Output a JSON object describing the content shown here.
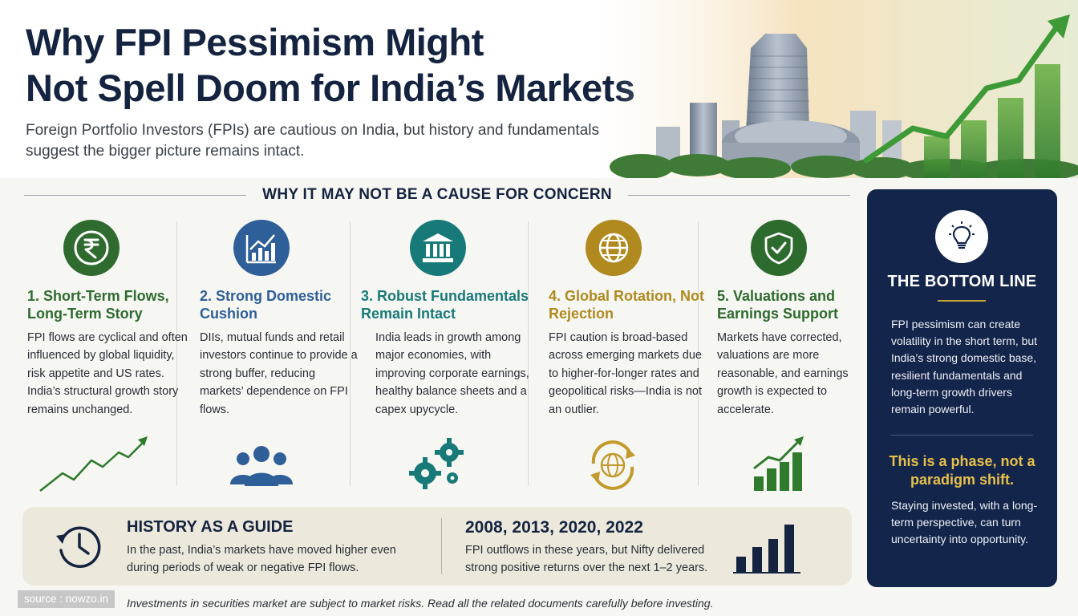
{
  "header": {
    "title_line1": "Why FPI Pessimism Might",
    "title_line2": "Not Spell Doom for India’s Markets",
    "subtitle": "Foreign Portfolio Investors (FPIs) are cautious on India, but history and fundamentals suggest the bigger picture remains intact."
  },
  "section_heading": "WHY IT MAY NOT BE A CAUSE FOR CONCERN",
  "reasons": [
    {
      "title": "1. Short-Term Flows, Long-Term Story",
      "body": "FPI flows are cyclical and often influenced by global liquidity, risk appetite and US rates. India’s structural growth story remains unchanged.",
      "color": "#2f6b2f",
      "icon": "rupee-icon",
      "art": "trend-line-icon"
    },
    {
      "title": "2. Strong Domestic Cushion",
      "body": "DIIs, mutual funds and retail investors continue to provide a strong buffer, reducing markets’ dependence on FPI flows.",
      "color": "#2f5f98",
      "icon": "growth-chart-icon",
      "art": "people-icon"
    },
    {
      "title": "3. Robust Fundamentals Remain Intact",
      "body": "India leads in growth among major economies, with improving corporate earnings, healthy balance sheets and a capex upycycle.",
      "color": "#187a78",
      "icon": "bank-building-icon",
      "art": "gears-icon"
    },
    {
      "title": "4. Global Rotation, Not Rejection",
      "body": "FPI caution is broad-based across emerging markets due to higher-for-longer rates and geopolitical risks—India is not an outlier.",
      "color": "#b08a1e",
      "icon": "globe-icon",
      "art": "rotating-globe-icon"
    },
    {
      "title": "5. Valuations and Earnings Support",
      "body": "Markets have corrected, valuations are more reasonable, and earnings growth is expected to accelerate.",
      "color": "#2d6a2d",
      "icon": "shield-check-icon",
      "art": "bar-growth-icon"
    }
  ],
  "history": {
    "heading": "HISTORY AS A GUIDE",
    "text": "In the past, India’s markets have moved higher even during periods of weak or negative FPI flows.",
    "years_heading": "2008, 2013, 2020, 2022",
    "years_text": "FPI outflows in these years, but Nifty delivered strong positive returns over the next 1–2 years."
  },
  "bottom_line": {
    "title": "THE BOTTOM LINE",
    "body": "FPI pessimism can create volatility in the short term, but India’s strong domestic base, resilient fundamentals and long-term growth drivers remain powerful.",
    "quote": "This is a phase, not a paradigm shift.",
    "footer": "Staying invested, with a long-term perspective, can turn uncertainty into opportunity."
  },
  "footer": {
    "source": "source : nowzo.in",
    "disclaimer": "Investments in securities market are subject to market risks. Read all the related documents carefully before investing."
  },
  "colors": {
    "navy": "#14233f",
    "card": "#13254b",
    "gold": "#e7c04a"
  }
}
